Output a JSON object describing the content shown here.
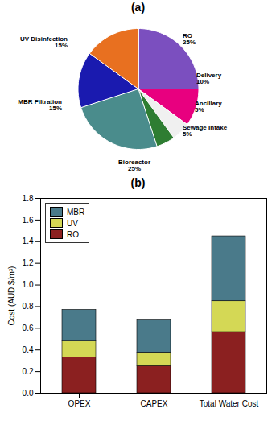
{
  "chart_data": [
    {
      "type": "pie",
      "title": "(a)",
      "categories": [
        "RO",
        "Delivery",
        "Ancillary",
        "Sewage Intake",
        "Bioreactor",
        "MBR Filtration",
        "UV Disinfection"
      ],
      "values": [
        25,
        10,
        5,
        5,
        25,
        15,
        15
      ],
      "value_labels": [
        "25%",
        "10%",
        "5%",
        "5%",
        "25%",
        "15%",
        "15%"
      ],
      "colors": [
        "#7B4FBF",
        "#E8007F",
        "#F0F0F0",
        "#2E7D32",
        "#4A8C8C",
        "#1A1AAF",
        "#E87020"
      ],
      "data_labels": true
    },
    {
      "type": "bar",
      "title": "(b)",
      "categories": [
        "OPEX",
        "CAPEX",
        "Total Water Cost"
      ],
      "series": [
        {
          "name": "RO",
          "color": "#8B2020",
          "values": [
            0.33,
            0.25,
            0.565
          ]
        },
        {
          "name": "UV",
          "color": "#D4D855",
          "values": [
            0.155,
            0.125,
            0.285
          ]
        },
        {
          "name": "MBR",
          "color": "#4A7A8A",
          "values": [
            0.285,
            0.305,
            0.6
          ]
        }
      ],
      "stacked": true,
      "ylabel": "Cost (AUD $/m³)",
      "ylim": [
        0,
        1.8
      ],
      "yticks": [
        {
          "value": 0,
          "label": "0.0"
        },
        0.2,
        0.4,
        0.6,
        0.8,
        {
          "value": 1,
          "label": "1.0"
        },
        1.2,
        1.4,
        1.6,
        1.8
      ],
      "grid": false,
      "legend": "upper left"
    }
  ]
}
